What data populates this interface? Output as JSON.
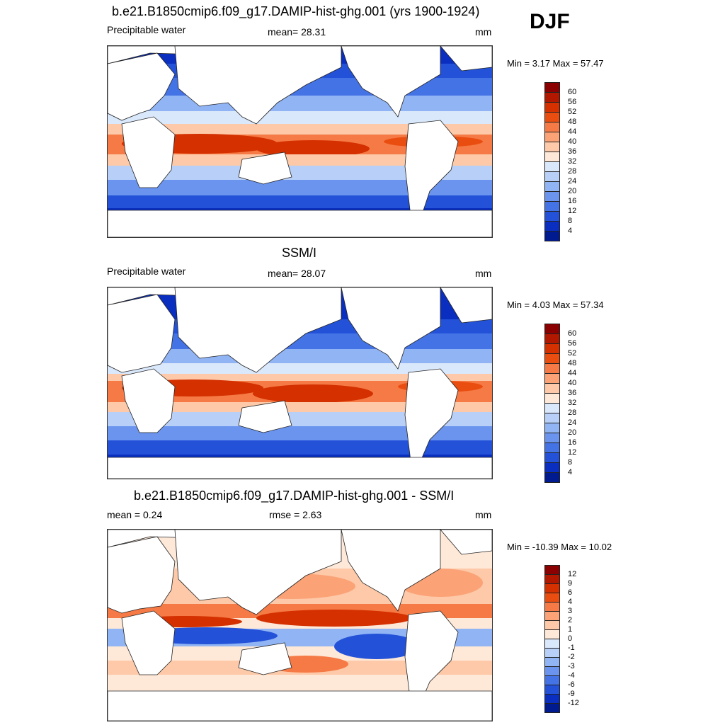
{
  "season": "DJF",
  "panels": [
    {
      "id": "model",
      "title": "b.e21.B1850cmip6.f09_g17.DAMIP-hist-ghg.001 (yrs 1900-1924)",
      "left_label": "Precipitable water",
      "center_label": "mean=  28.31",
      "units": "mm",
      "minmax": "Min =   3.17 Max =  57.47",
      "colorbar_labels": [
        "60",
        "56",
        "52",
        "48",
        "44",
        "40",
        "36",
        "32",
        "28",
        "24",
        "20",
        "16",
        "12",
        "8",
        "4"
      ]
    },
    {
      "id": "obs",
      "title": "SSM/I",
      "left_label": "Precipitable water",
      "center_label": "mean=  28.07",
      "units": "mm",
      "minmax": "Min =   4.03 Max =  57.34",
      "colorbar_labels": [
        "60",
        "56",
        "52",
        "48",
        "44",
        "40",
        "36",
        "32",
        "28",
        "24",
        "20",
        "16",
        "12",
        "8",
        "4"
      ]
    },
    {
      "id": "diff",
      "title": "b.e21.B1850cmip6.f09_g17.DAMIP-hist-ghg.001 - SSM/I",
      "left_label": "mean =   0.24",
      "center_label": "rmse =   2.63",
      "units": "mm",
      "minmax": "Min = -10.39 Max =  10.02",
      "colorbar_labels": [
        "12",
        "9",
        "6",
        "4",
        "3",
        "2",
        "1",
        "0",
        "-1",
        "-2",
        "-3",
        "-4",
        "-6",
        "-9",
        "-12"
      ]
    }
  ],
  "colors": {
    "abs_scale": [
      "#8b0000",
      "#b21800",
      "#d43000",
      "#ea4d10",
      "#f57a45",
      "#fba276",
      "#fdc9a8",
      "#fee8d8",
      "#dae8fb",
      "#b8d0f8",
      "#90b4f4",
      "#6a94ee",
      "#4473e6",
      "#2352d8",
      "#0a2fc0",
      "#001a90"
    ],
    "diff_scale": [
      "#8b0000",
      "#b21800",
      "#d43000",
      "#ea4d10",
      "#f57a45",
      "#fba276",
      "#fdc9a8",
      "#fee8d8",
      "#dae8fb",
      "#b8d0f8",
      "#90b4f4",
      "#6a94ee",
      "#4473e6",
      "#2352d8",
      "#0a2fc0",
      "#001a90"
    ],
    "land": "#ffffff",
    "coast": "#222222"
  }
}
